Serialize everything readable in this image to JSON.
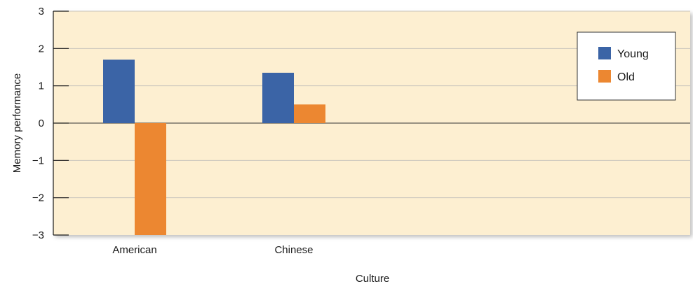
{
  "chart_data": {
    "type": "bar",
    "title": "",
    "xlabel": "Culture",
    "ylabel": "Memory performance",
    "categories": [
      "American",
      "Chinese"
    ],
    "series": [
      {
        "name": "Young",
        "values": [
          1.7,
          1.35
        ],
        "color": "#3b64a6"
      },
      {
        "name": "Old",
        "values": [
          -3.0,
          0.5
        ],
        "color": "#ec8731"
      }
    ],
    "ylim": [
      -3,
      3
    ],
    "yticks": [
      3,
      2,
      1,
      0,
      -1,
      -2,
      -3
    ],
    "ytick_labels": [
      "3",
      "2",
      "1",
      "0",
      "−1",
      "−2",
      "−3"
    ],
    "grid": true,
    "legend_position": "top-right",
    "colors": {
      "plot_background": "#fdefd1",
      "gridline": "#c9c4bc",
      "zero_line": "#333333"
    }
  }
}
